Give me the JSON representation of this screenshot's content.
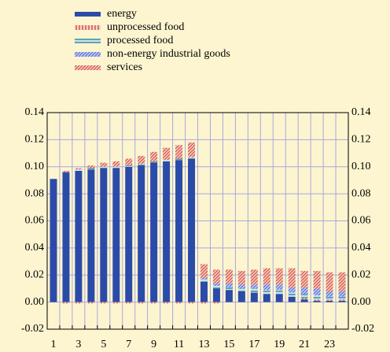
{
  "chart_data": {
    "type": "stacked_bar",
    "categories": [
      "1",
      null,
      "3",
      null,
      "5",
      null,
      "7",
      null,
      "9",
      null,
      "11",
      null,
      "13",
      null,
      "15",
      null,
      "17",
      null,
      "19",
      null,
      "21",
      null,
      "23",
      null
    ],
    "series": [
      {
        "name": "energy",
        "color": "#2b4ba8",
        "hatch": "solid",
        "values": [
          0.091,
          0.096,
          0.097,
          0.098,
          0.099,
          0.099,
          0.1,
          0.101,
          0.103,
          0.104,
          0.105,
          0.106,
          0.015,
          0.01,
          0.009,
          0.008,
          0.007,
          0.006,
          0.006,
          0.004,
          0.002,
          0.001,
          0.001,
          0.001
        ]
      },
      {
        "name": "unprocessed food",
        "color": "#d9534a",
        "hatch": "vertical",
        "values": [
          0,
          -0.001,
          -0.001,
          -0.001,
          -0.001,
          -0.001,
          -0.001,
          -0.001,
          -0.001,
          -0.001,
          -0.001,
          -0.001,
          -0.001,
          -0.001,
          0,
          0,
          0,
          0,
          0,
          0,
          0.001,
          0.001,
          0.001,
          0.001
        ]
      },
      {
        "name": "processed food",
        "color": "#3f8fa0",
        "hatch": "horizontal",
        "values": [
          0,
          0,
          0.001,
          0.001,
          0.001,
          0.001,
          0.001,
          0.001,
          0.001,
          0.001,
          0.001,
          0.001,
          0.002,
          0.002,
          0.002,
          0.002,
          0.003,
          0.003,
          0.003,
          0.003,
          0.003,
          0.003,
          0.002,
          0.002
        ]
      },
      {
        "name": "non-energy industrial goods",
        "color": "#5a6fd8",
        "hatch": "diagonal",
        "values": [
          0,
          0,
          0,
          0,
          0,
          0,
          0,
          0,
          0,
          0,
          0,
          0,
          0.001,
          0.002,
          0.003,
          0.003,
          0.003,
          0.004,
          0.004,
          0.004,
          0.005,
          0.005,
          0.004,
          0.004
        ]
      },
      {
        "name": "services",
        "color": "#d9534a",
        "hatch": "diagonal",
        "values": [
          0,
          0.001,
          0.001,
          0.002,
          0.003,
          0.004,
          0.005,
          0.006,
          0.007,
          0.009,
          0.01,
          0.011,
          0.01,
          0.01,
          0.01,
          0.01,
          0.011,
          0.012,
          0.012,
          0.014,
          0.012,
          0.013,
          0.014,
          0.014
        ]
      }
    ],
    "ylim": [
      -0.02,
      0.14
    ],
    "yticks": [
      {
        "value": -0.02,
        "label": "-0.02"
      },
      {
        "value": 0,
        "label": "0.00"
      },
      {
        "value": 0.02,
        "label": "0.02"
      },
      {
        "value": 0.04,
        "label": "0.04"
      },
      {
        "value": 0.06,
        "label": "0.06"
      },
      {
        "value": 0.08,
        "label": "0.08"
      },
      {
        "value": 0.1,
        "label": "0.10"
      },
      {
        "value": 0.12,
        "label": "0.12"
      },
      {
        "value": 0.14,
        "label": "0.14"
      }
    ],
    "grid": true,
    "secondary_axis_mirror": true,
    "legend": "top"
  }
}
